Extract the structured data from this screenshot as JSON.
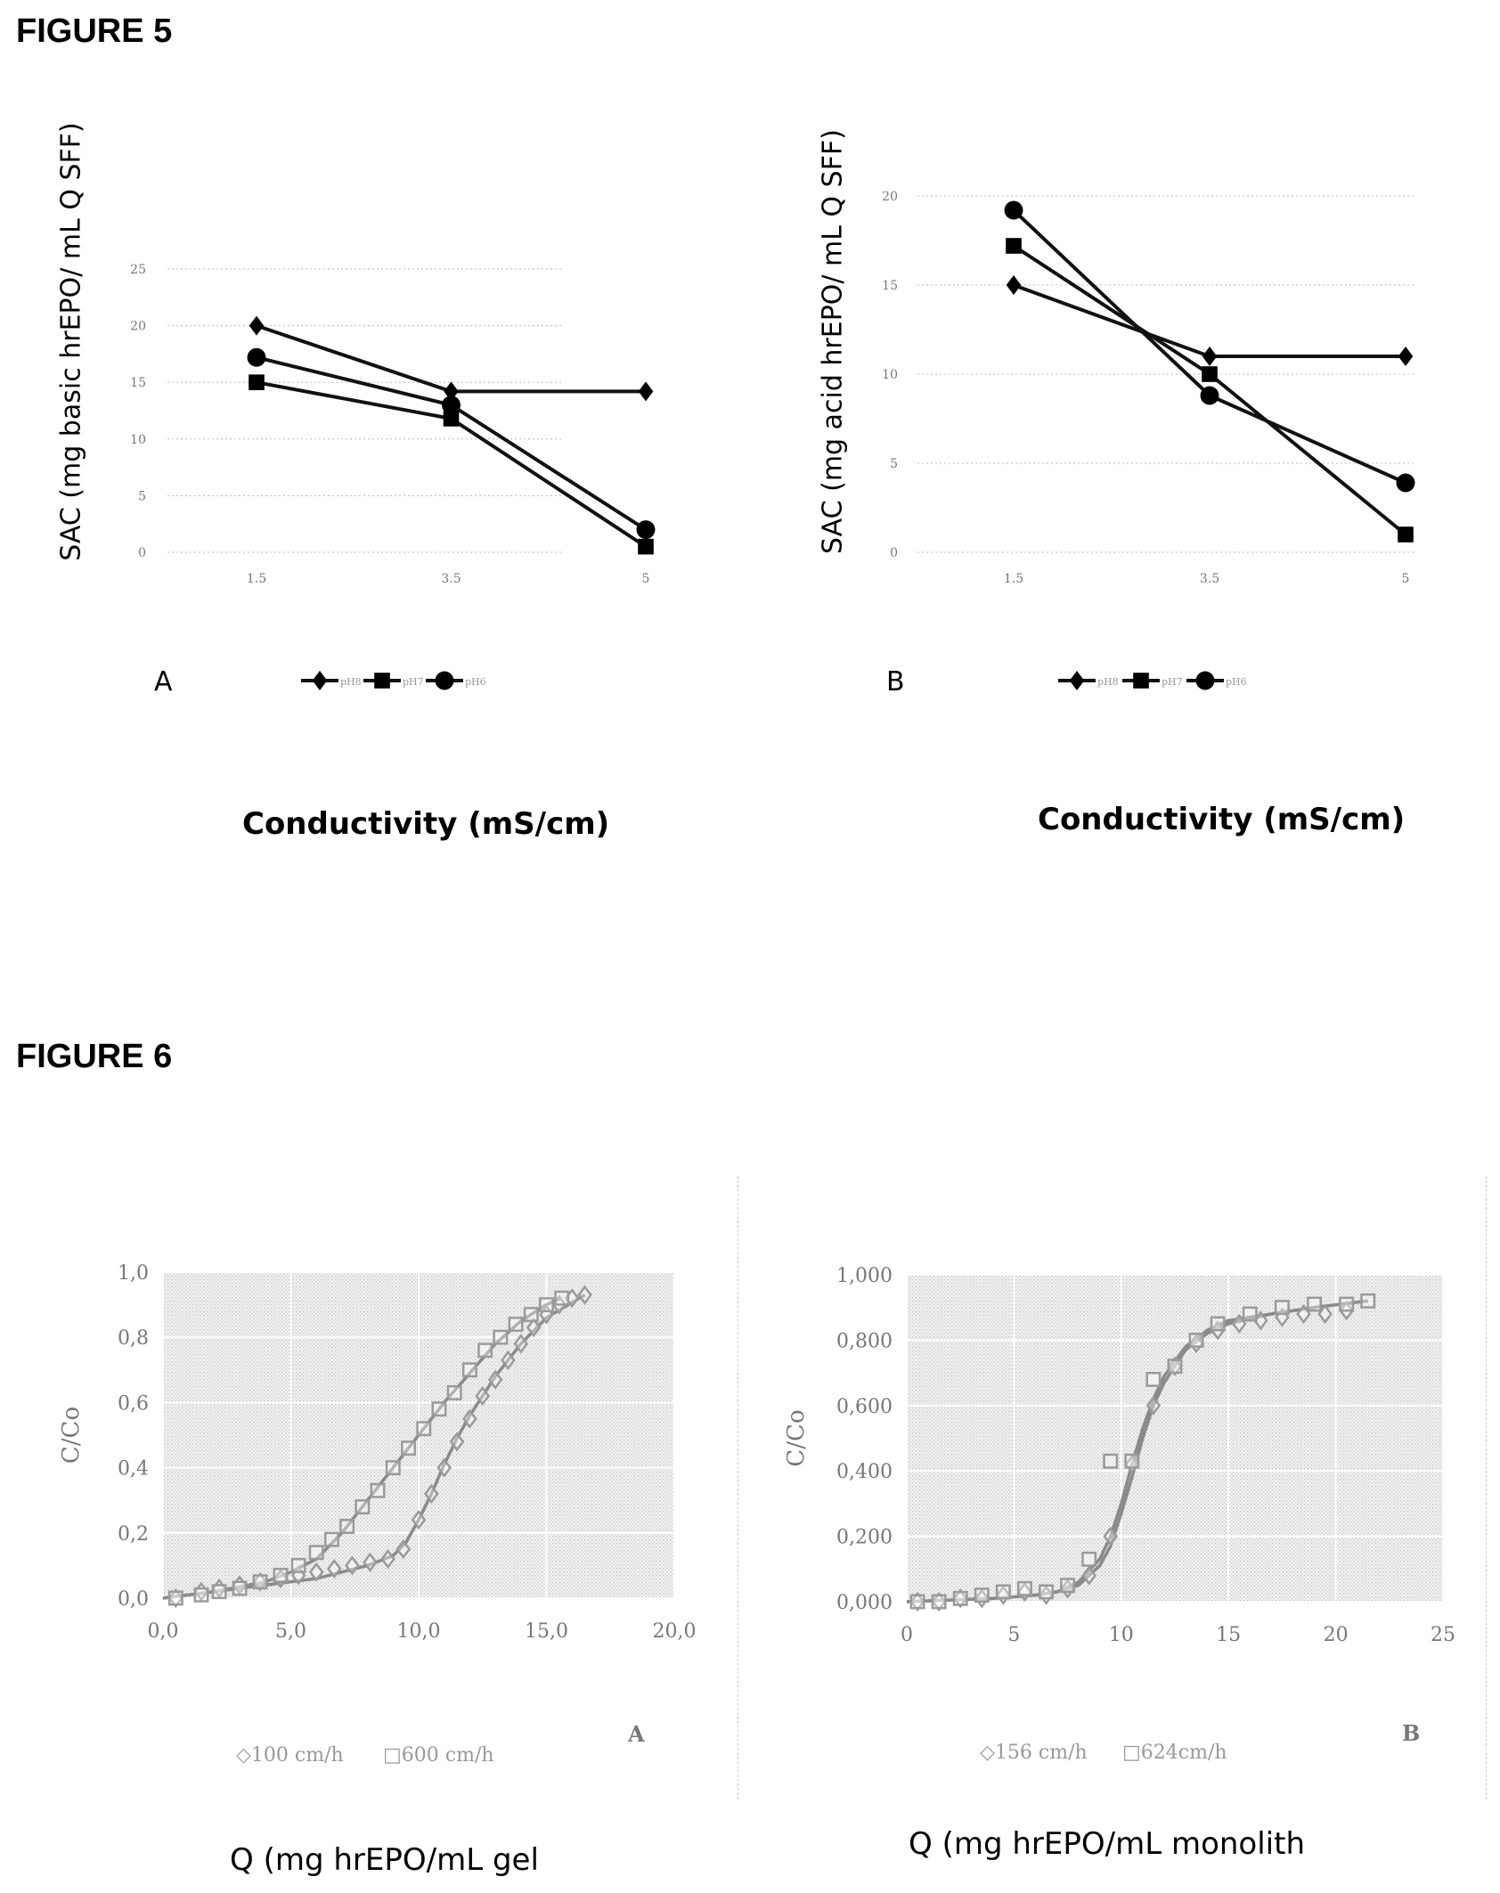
{
  "figure5": {
    "title": "FIGURE 5",
    "x_axis_title": "Conductivity  (mS/cm)"
  },
  "figure6": {
    "title": "FIGURE 6"
  },
  "chart_data": [
    {
      "id": "fig5A",
      "type": "line",
      "panel_label": "A",
      "ylabel": "SAC (mg basic hrEPO/ mL Q SFF)",
      "xlabel": "Conductivity  (mS/cm)",
      "categories": [
        "1.5",
        "3.5",
        "5"
      ],
      "yticks": [
        "0",
        "5",
        "10",
        "15",
        "20",
        "25"
      ],
      "ylim": [
        0,
        25
      ],
      "series": [
        {
          "name": "pH8",
          "marker": "diamond",
          "values": [
            20,
            14.2,
            14.2
          ]
        },
        {
          "name": "pH7",
          "marker": "square",
          "values": [
            15,
            11.8,
            0.5
          ]
        },
        {
          "name": "pH6",
          "marker": "circle",
          "values": [
            17.2,
            13,
            2
          ]
        }
      ]
    },
    {
      "id": "fig5B",
      "type": "line",
      "panel_label": "B",
      "ylabel": "SAC (mg acid hrEPO/ mL Q SFF)",
      "xlabel": "Conductivity  (mS/cm)",
      "categories": [
        "1.5",
        "3.5",
        "5"
      ],
      "yticks": [
        "0",
        "5",
        "10",
        "15",
        "20"
      ],
      "ylim": [
        0,
        20
      ],
      "series": [
        {
          "name": "pH8",
          "marker": "diamond",
          "values": [
            15,
            11,
            11
          ]
        },
        {
          "name": "pH7",
          "marker": "square",
          "values": [
            17.2,
            10,
            1
          ]
        },
        {
          "name": "pH6",
          "marker": "circle",
          "values": [
            19.2,
            8.8,
            3.9
          ]
        }
      ]
    },
    {
      "id": "fig6A",
      "type": "scatter",
      "panel_label": "A",
      "ylabel": "C/Co",
      "xlabel": "Q (mg hrEPO/mL gel",
      "xlim": [
        0,
        20
      ],
      "ylim": [
        0,
        1
      ],
      "xticks": [
        "0,0",
        "5,0",
        "10,0",
        "15,0",
        "20,0"
      ],
      "yticks": [
        "0,0",
        "0,2",
        "0,4",
        "0,6",
        "0,8",
        "1,0"
      ],
      "series": [
        {
          "name": "100 cm/h",
          "marker": "diamond",
          "x": [
            0.5,
            1.5,
            2.2,
            3,
            3.8,
            4.6,
            5.3,
            6,
            6.7,
            7.4,
            8.1,
            8.8,
            9.4,
            10,
            10.5,
            11,
            11.5,
            12,
            12.5,
            13,
            13.5,
            14,
            14.5,
            15,
            15.5,
            16,
            16.5
          ],
          "y": [
            0,
            0.02,
            0.03,
            0.04,
            0.05,
            0.06,
            0.07,
            0.08,
            0.09,
            0.1,
            0.11,
            0.12,
            0.15,
            0.24,
            0.32,
            0.4,
            0.48,
            0.55,
            0.62,
            0.67,
            0.73,
            0.78,
            0.83,
            0.87,
            0.9,
            0.92,
            0.93
          ]
        },
        {
          "name": "600 cm/h",
          "marker": "square",
          "x": [
            0.5,
            1.5,
            2.2,
            3,
            3.8,
            4.6,
            5.3,
            6,
            6.6,
            7.2,
            7.8,
            8.4,
            9,
            9.6,
            10.2,
            10.8,
            11.4,
            12,
            12.6,
            13.2,
            13.8,
            14.4,
            15,
            15.6
          ],
          "y": [
            0,
            0.01,
            0.02,
            0.03,
            0.05,
            0.07,
            0.1,
            0.14,
            0.18,
            0.22,
            0.28,
            0.33,
            0.4,
            0.46,
            0.52,
            0.58,
            0.63,
            0.7,
            0.76,
            0.8,
            0.84,
            0.87,
            0.9,
            0.92
          ]
        }
      ],
      "fit_lines": [
        {
          "x": [
            0,
            2,
            4,
            6,
            7,
            8,
            9,
            9.5,
            10,
            10.5,
            11,
            11.5,
            12,
            13,
            14,
            15,
            16.5
          ],
          "y": [
            0,
            0.02,
            0.04,
            0.06,
            0.08,
            0.1,
            0.13,
            0.17,
            0.24,
            0.32,
            0.41,
            0.49,
            0.56,
            0.68,
            0.78,
            0.86,
            0.93
          ]
        },
        {
          "x": [
            0,
            2,
            4,
            5,
            6,
            7,
            8,
            9,
            10,
            11,
            12,
            13,
            14,
            15,
            15.6
          ],
          "y": [
            0,
            0.02,
            0.05,
            0.08,
            0.12,
            0.2,
            0.3,
            0.4,
            0.5,
            0.6,
            0.69,
            0.78,
            0.85,
            0.9,
            0.92
          ]
        }
      ],
      "legend": [
        "◇100 cm/h",
        "□600 cm/h"
      ]
    },
    {
      "id": "fig6B",
      "type": "scatter",
      "panel_label": "B",
      "ylabel": "C/Co",
      "xlabel": "Q (mg hrEPO/mL monolith",
      "xlim": [
        0,
        25
      ],
      "ylim": [
        0,
        1
      ],
      "xticks": [
        "0",
        "5",
        "10",
        "15",
        "20",
        "25"
      ],
      "yticks": [
        "0,000",
        "0,200",
        "0,400",
        "0,600",
        "0,800",
        "1,000"
      ],
      "series": [
        {
          "name": "156 cm/h",
          "marker": "diamond",
          "x": [
            0.5,
            1.5,
            2.5,
            3.5,
            4.5,
            5.5,
            6.5,
            7.5,
            8.5,
            9.5,
            10.5,
            11.5,
            12.5,
            13.5,
            14.5,
            15.5,
            16.5,
            17.5,
            18.5,
            19.5,
            20.5
          ],
          "y": [
            0,
            0,
            0.01,
            0.01,
            0.02,
            0.03,
            0.02,
            0.04,
            0.08,
            0.2,
            0.42,
            0.6,
            0.72,
            0.79,
            0.83,
            0.85,
            0.86,
            0.87,
            0.88,
            0.88,
            0.89
          ]
        },
        {
          "name": "624cm/h",
          "marker": "square",
          "x": [
            0.5,
            1.5,
            2.5,
            3.5,
            4.5,
            5.5,
            6.5,
            7.5,
            8.5,
            9.5,
            10.5,
            11.5,
            12.5,
            13.5,
            14.5,
            16,
            17.5,
            19,
            20.5,
            21.5
          ],
          "y": [
            0,
            0,
            0.01,
            0.02,
            0.03,
            0.04,
            0.03,
            0.05,
            0.13,
            0.43,
            0.43,
            0.68,
            0.72,
            0.8,
            0.85,
            0.88,
            0.9,
            0.91,
            0.91,
            0.92
          ]
        }
      ],
      "fit_lines": [
        {
          "x": [
            0,
            4,
            6,
            7,
            8,
            9,
            9.5,
            10,
            10.5,
            11,
            11.5,
            12,
            13,
            14,
            15,
            17,
            19,
            21.5
          ],
          "y": [
            0,
            0.01,
            0.02,
            0.03,
            0.06,
            0.13,
            0.2,
            0.3,
            0.42,
            0.53,
            0.62,
            0.69,
            0.78,
            0.83,
            0.86,
            0.88,
            0.9,
            0.92
          ]
        },
        {
          "x": [
            0,
            4,
            6,
            7,
            8,
            9,
            9.5,
            10,
            10.5,
            11,
            11.5,
            12,
            13,
            14,
            15,
            17,
            19,
            21.5
          ],
          "y": [
            0,
            0.01,
            0.02,
            0.03,
            0.05,
            0.11,
            0.17,
            0.27,
            0.38,
            0.5,
            0.6,
            0.67,
            0.77,
            0.82,
            0.85,
            0.88,
            0.9,
            0.92
          ]
        }
      ],
      "legend": [
        "◇156 cm/h",
        "□624cm/h"
      ]
    }
  ]
}
